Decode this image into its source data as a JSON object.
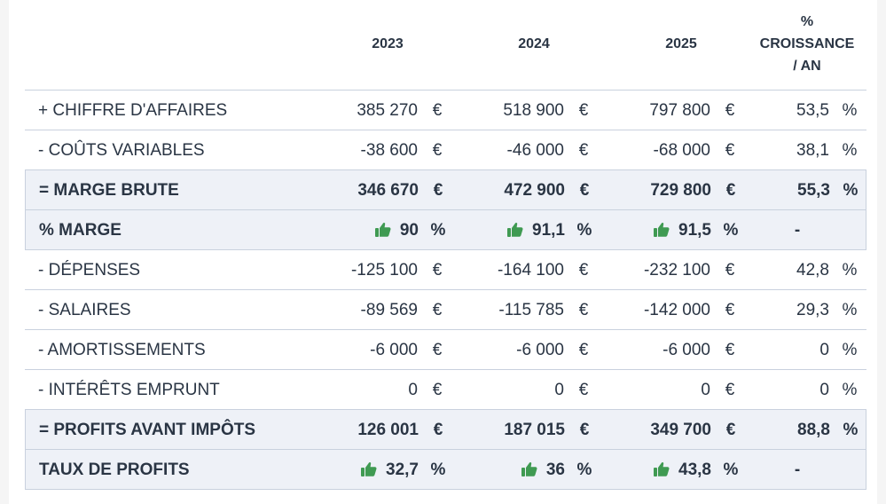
{
  "header": {
    "col_2023": "2023",
    "col_2024": "2024",
    "col_2025": "2025",
    "growth_line1": "%",
    "growth_line2": "CROISSANCE",
    "growth_line3": "/ AN"
  },
  "colors": {
    "text": "#2a3544",
    "highlight_bg": "#eef1f7",
    "border": "#c9d1de",
    "thumb_green": "#3f9a52"
  },
  "rows": [
    {
      "label": "+ CHIFFRE D'AFFAIRES",
      "v2023": "385 270",
      "u2023": "€",
      "v2024": "518 900",
      "u2024": "€",
      "v2025": "797 800",
      "u2025": "€",
      "growth": "53,5",
      "ugrowth": "%"
    },
    {
      "label": "- COÛTS VARIABLES",
      "v2023": "-38 600",
      "u2023": "€",
      "v2024": "-46 000",
      "u2024": "€",
      "v2025": "-68 000",
      "u2025": "€",
      "growth": "38,1",
      "ugrowth": "%"
    },
    {
      "label": "= MARGE BRUTE",
      "v2023": "346 670",
      "u2023": "€",
      "v2024": "472 900",
      "u2024": "€",
      "v2025": "729 800",
      "u2025": "€",
      "growth": "55,3",
      "ugrowth": "%"
    },
    {
      "label": "% MARGE",
      "v2023": "90",
      "u2023": "%",
      "v2024": "91,1",
      "u2024": "%",
      "v2025": "91,5",
      "u2025": "%",
      "growth": "-",
      "icon": "thumbs-up-icon"
    },
    {
      "label": "- DÉPENSES",
      "v2023": "-125 100",
      "u2023": "€",
      "v2024": "-164 100",
      "u2024": "€",
      "v2025": "-232 100",
      "u2025": "€",
      "growth": "42,8",
      "ugrowth": "%"
    },
    {
      "label": "- SALAIRES",
      "v2023": "-89 569",
      "u2023": "€",
      "v2024": "-115 785",
      "u2024": "€",
      "v2025": "-142 000",
      "u2025": "€",
      "growth": "29,3",
      "ugrowth": "%"
    },
    {
      "label": "- AMORTISSEMENTS",
      "v2023": "-6 000",
      "u2023": "€",
      "v2024": "-6 000",
      "u2024": "€",
      "v2025": "-6 000",
      "u2025": "€",
      "growth": "0",
      "ugrowth": "%"
    },
    {
      "label": "- INTÉRÊTS EMPRUNT",
      "v2023": "0",
      "u2023": "€",
      "v2024": "0",
      "u2024": "€",
      "v2025": "0",
      "u2025": "€",
      "growth": "0",
      "ugrowth": "%"
    },
    {
      "label": "= PROFITS AVANT IMPÔTS",
      "v2023": "126 001",
      "u2023": "€",
      "v2024": "187 015",
      "u2024": "€",
      "v2025": "349 700",
      "u2025": "€",
      "growth": "88,8",
      "ugrowth": "%"
    },
    {
      "label": "TAUX DE PROFITS",
      "v2023": "32,7",
      "u2023": "%",
      "v2024": "36",
      "u2024": "%",
      "v2025": "43,8",
      "u2025": "%",
      "growth": "-",
      "icon": "thumbs-up-icon"
    }
  ]
}
